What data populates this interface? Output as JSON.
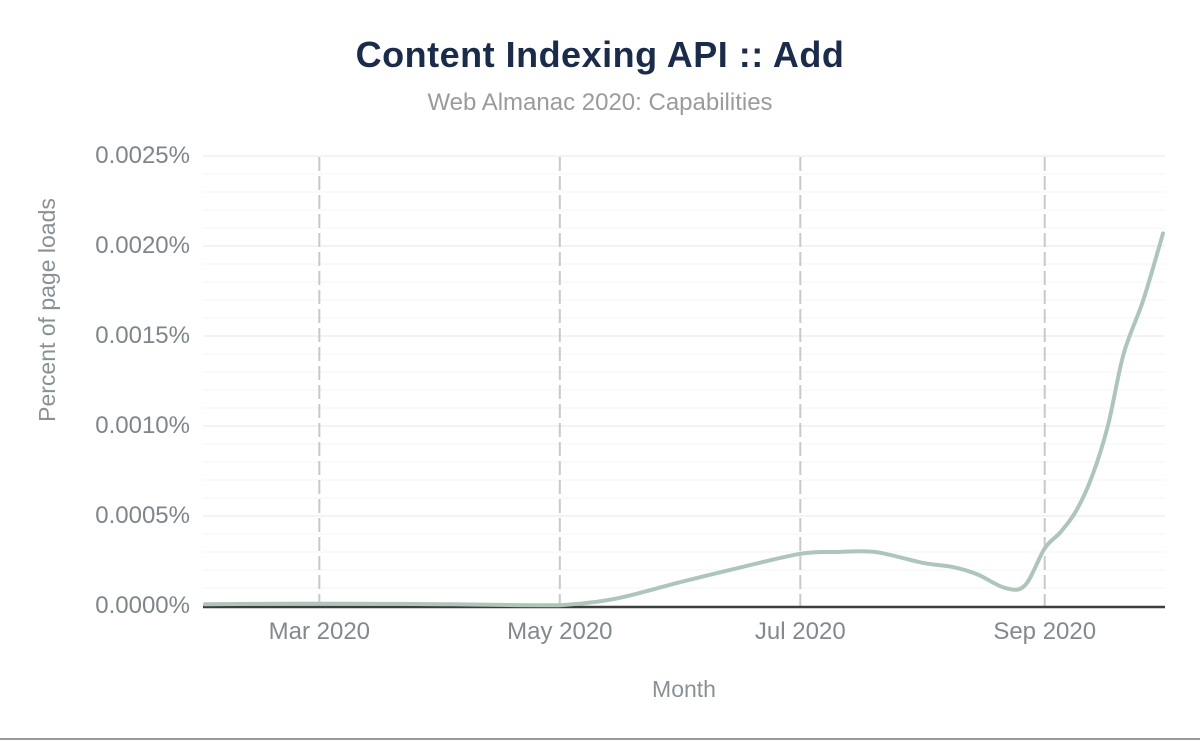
{
  "chart_data": {
    "type": "line",
    "title": "Content Indexing API :: Add",
    "subtitle": "Web Almanac 2020: Capabilities",
    "xlabel": "Month",
    "ylabel": "Percent of page loads",
    "x_domain": [
      "2020-02-01",
      "2020-10-01"
    ],
    "total_days": 243,
    "ylim_percent": [
      0,
      0.0025
    ],
    "y_major_step_percent": 0.0005,
    "y_minor_step_percent": 0.0001,
    "y_tick_labels": [
      "0.0000%",
      "0.0005%",
      "0.0010%",
      "0.0015%",
      "0.0020%",
      "0.0025%"
    ],
    "x_ticks": [
      {
        "label": "Mar 2020",
        "day": 29
      },
      {
        "label": "May 2020",
        "day": 90
      },
      {
        "label": "Jul 2020",
        "day": 151
      },
      {
        "label": "Sep 2020",
        "day": 213
      }
    ],
    "grid": {
      "horizontal": "minor+major",
      "vertical": "dashed-at-month-ticks"
    },
    "legend_position": "none",
    "series": [
      {
        "name": "Content Indexing API :: Add",
        "color": "#aec6b9",
        "points": [
          {
            "date": "2020-02-01",
            "day": 0,
            "percent": 1e-05
          },
          {
            "date": "2020-02-20",
            "day": 19,
            "percent": 1.3e-05
          },
          {
            "date": "2020-03-10",
            "day": 38,
            "percent": 1.3e-05
          },
          {
            "date": "2020-04-01",
            "day": 60,
            "percent": 1e-05
          },
          {
            "date": "2020-04-20",
            "day": 79,
            "percent": 5e-06
          },
          {
            "date": "2020-05-01",
            "day": 90,
            "percent": 1e-06
          },
          {
            "date": "2020-05-15",
            "day": 104,
            "percent": 4e-05
          },
          {
            "date": "2020-06-01",
            "day": 121,
            "percent": 0.000135
          },
          {
            "date": "2020-06-15",
            "day": 135,
            "percent": 0.00021
          },
          {
            "date": "2020-07-01",
            "day": 151,
            "percent": 0.00029
          },
          {
            "date": "2020-07-10",
            "day": 160,
            "percent": 0.0003
          },
          {
            "date": "2020-07-20",
            "day": 170,
            "percent": 0.0003
          },
          {
            "date": "2020-08-01",
            "day": 182,
            "percent": 0.00024
          },
          {
            "date": "2020-08-09",
            "day": 190,
            "percent": 0.000215
          },
          {
            "date": "2020-08-15",
            "day": 196,
            "percent": 0.000175
          },
          {
            "date": "2020-08-22",
            "day": 203,
            "percent": 0.0001
          },
          {
            "date": "2020-08-27",
            "day": 208,
            "percent": 0.000115
          },
          {
            "date": "2020-09-01",
            "day": 213,
            "percent": 0.00032
          },
          {
            "date": "2020-09-05",
            "day": 217,
            "percent": 0.00041
          },
          {
            "date": "2020-09-09",
            "day": 221,
            "percent": 0.00053
          },
          {
            "date": "2020-09-13",
            "day": 225,
            "percent": 0.00072
          },
          {
            "date": "2020-09-17",
            "day": 229,
            "percent": 0.001
          },
          {
            "date": "2020-09-21",
            "day": 233,
            "percent": 0.0014
          },
          {
            "date": "2020-09-26",
            "day": 238,
            "percent": 0.0017
          },
          {
            "date": "2020-10-01",
            "day": 243,
            "percent": 0.00207
          }
        ]
      }
    ],
    "colors": {
      "line": "#aec6b9",
      "title": "#1b2b4a",
      "subtitle": "#9b9b9b",
      "axis_labels": "#7e868c",
      "grid_major": "#ececec",
      "grid_minor": "#f6f6f6",
      "dashed_guide": "#c9c9c9",
      "axis_line": "#3e3e3e",
      "page_bottom_border": "#9a9a9a"
    }
  }
}
